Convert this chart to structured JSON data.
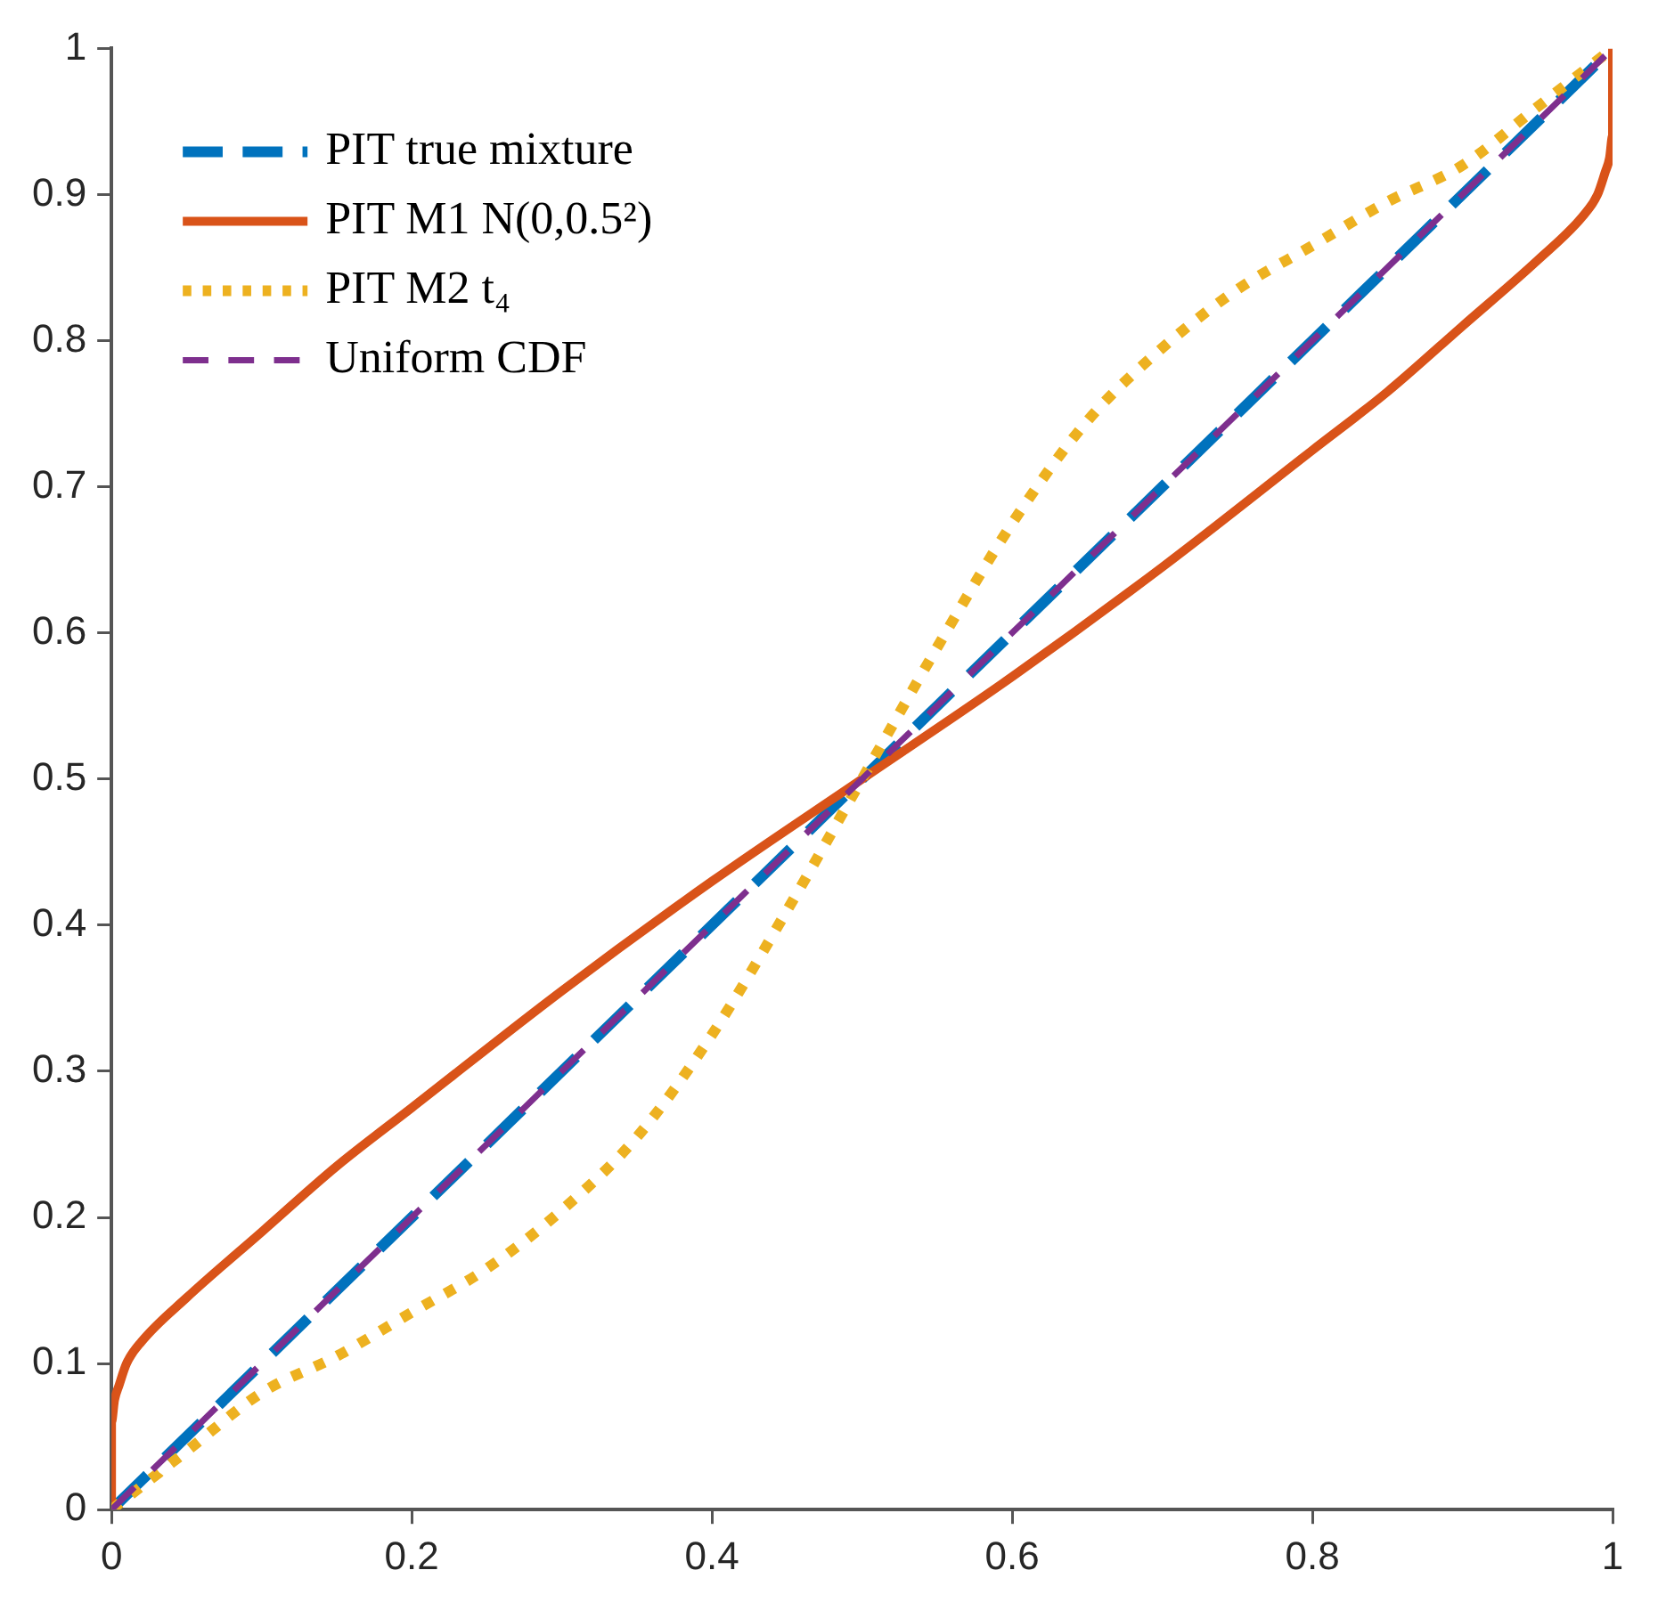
{
  "chart_data": {
    "type": "line",
    "xlim": [
      0,
      1
    ],
    "ylim": [
      0,
      1
    ],
    "xticks": [
      0,
      0.2,
      0.4,
      0.6,
      0.8,
      1
    ],
    "yticks": [
      0,
      0.1,
      0.2,
      0.3,
      0.4,
      0.5,
      0.6,
      0.7,
      0.8,
      0.9,
      1
    ],
    "grid": false,
    "legend": "top left",
    "marker": "none",
    "series": [
      {
        "name": "PIT true mixture",
        "color": "#0072bd",
        "line_style": "dashed",
        "x": [
          0,
          0.25,
          0.5,
          0.75,
          1
        ],
        "values": [
          0,
          0.25,
          0.5,
          0.75,
          1
        ]
      },
      {
        "name": "PIT M1 N(0,0.5²)",
        "color": "#d95319",
        "line_style": "solid",
        "x": [
          0,
          0,
          0.002,
          0.005,
          0.01,
          0.02,
          0.05,
          0.1,
          0.15,
          0.2,
          0.3,
          0.4,
          0.5,
          0.6,
          0.7,
          0.8,
          0.85,
          0.9,
          0.95,
          0.98,
          0.99,
          0.995,
          0.998,
          1,
          1
        ],
        "values": [
          0,
          0.06,
          0.075,
          0.085,
          0.1,
          0.115,
          0.145,
          0.19,
          0.235,
          0.275,
          0.355,
          0.43,
          0.5,
          0.57,
          0.645,
          0.725,
          0.765,
          0.81,
          0.855,
          0.885,
          0.9,
          0.915,
          0.925,
          0.94,
          1
        ]
      },
      {
        "name": "PIT M2 t₄",
        "color": "#edb120",
        "line_style": "dotted",
        "x": [
          0,
          0.05,
          0.1,
          0.15,
          0.2,
          0.25,
          0.3,
          0.35,
          0.4,
          0.45,
          0.5,
          0.55,
          0.6,
          0.65,
          0.7,
          0.75,
          0.8,
          0.85,
          0.9,
          0.95,
          1
        ],
        "values": [
          0,
          0.04,
          0.08,
          0.105,
          0.135,
          0.165,
          0.205,
          0.255,
          0.325,
          0.41,
          0.5,
          0.59,
          0.675,
          0.745,
          0.795,
          0.835,
          0.865,
          0.895,
          0.92,
          0.96,
          1
        ]
      },
      {
        "name": "Uniform CDF",
        "color": "#7e2f8e",
        "line_style": "dashed",
        "x": [
          0,
          1
        ],
        "values": [
          0,
          1
        ]
      }
    ]
  }
}
